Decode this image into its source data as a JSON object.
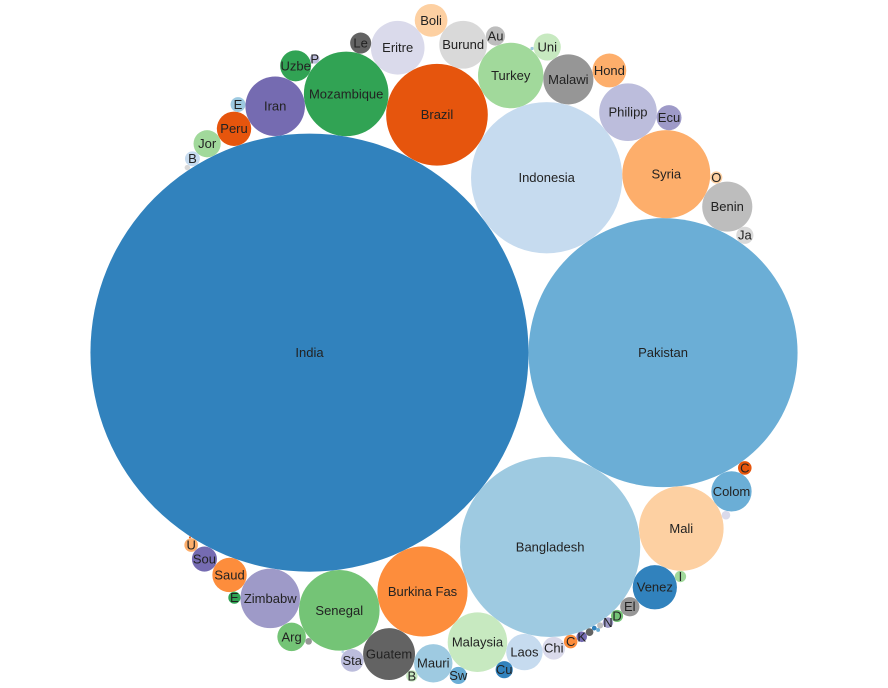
{
  "chart_data": {
    "type": "bubble",
    "categories": [
      "India",
      "Pakistan",
      "Bangladesh",
      "Indonesia",
      "Brazil",
      "Burkina Fas",
      "Syria",
      "Mali",
      "Mozambique",
      "Senegal",
      "Turkey",
      "Malaysia",
      "Iran",
      "Zimbabw",
      "Philipp",
      "Eritre",
      "Guatem",
      "Malawi",
      "Benin",
      "Burund",
      "Venez",
      "Colom",
      "Mauri",
      "Laos",
      "Peru",
      "Saud",
      "Hond",
      "Boli",
      "Uzbe",
      "Arg",
      "Jor",
      "Uni",
      "Sou",
      "Ecu",
      "Sta",
      "Chi",
      "Le",
      "El",
      "Au",
      "Ja",
      "Cu",
      "Sw",
      "E",
      "B",
      "C",
      "C",
      "U",
      "O",
      "E",
      "D",
      "I",
      "B",
      "K",
      "N",
      "P",
      null,
      null,
      null,
      null,
      null,
      null,
      null,
      null,
      null,
      null
    ],
    "values": [
      520,
      196,
      88,
      62,
      28,
      22,
      21,
      19.4,
      19.4,
      17.6,
      11.6,
      9.6,
      9.6,
      9.6,
      9,
      7.8,
      7.3,
      6.8,
      6.8,
      6.2,
      5.3,
      4.4,
      4,
      3.6,
      3.2,
      3.2,
      3.1,
      2.9,
      2.6,
      2.2,
      2,
      2,
      1.7,
      1.7,
      1.4,
      1.4,
      1.2,
      1,
      1,
      0.8,
      0.8,
      0.8,
      0.6,
      0.6,
      0.5,
      0.5,
      0.5,
      0.4,
      0.4,
      0.4,
      0.35,
      0.35,
      0.3,
      0.3,
      0.25,
      0.2,
      0.16,
      0.12,
      0.1,
      0.08,
      0.06,
      0.04,
      0.03,
      0.02,
      0.01
    ],
    "colors": [
      "#3182bd",
      "#6baed6",
      "#9ecae1",
      "#c6dbef",
      "#e6550d",
      "#fd8d3c",
      "#fdae6b",
      "#fdd0a2",
      "#31a354",
      "#74c476",
      "#a1d99b",
      "#c7e9c0",
      "#756bb1",
      "#9e9ac8",
      "#bcbddc",
      "#dadaeb",
      "#636363",
      "#969696",
      "#bdbdbd",
      "#d9d9d9"
    ]
  }
}
